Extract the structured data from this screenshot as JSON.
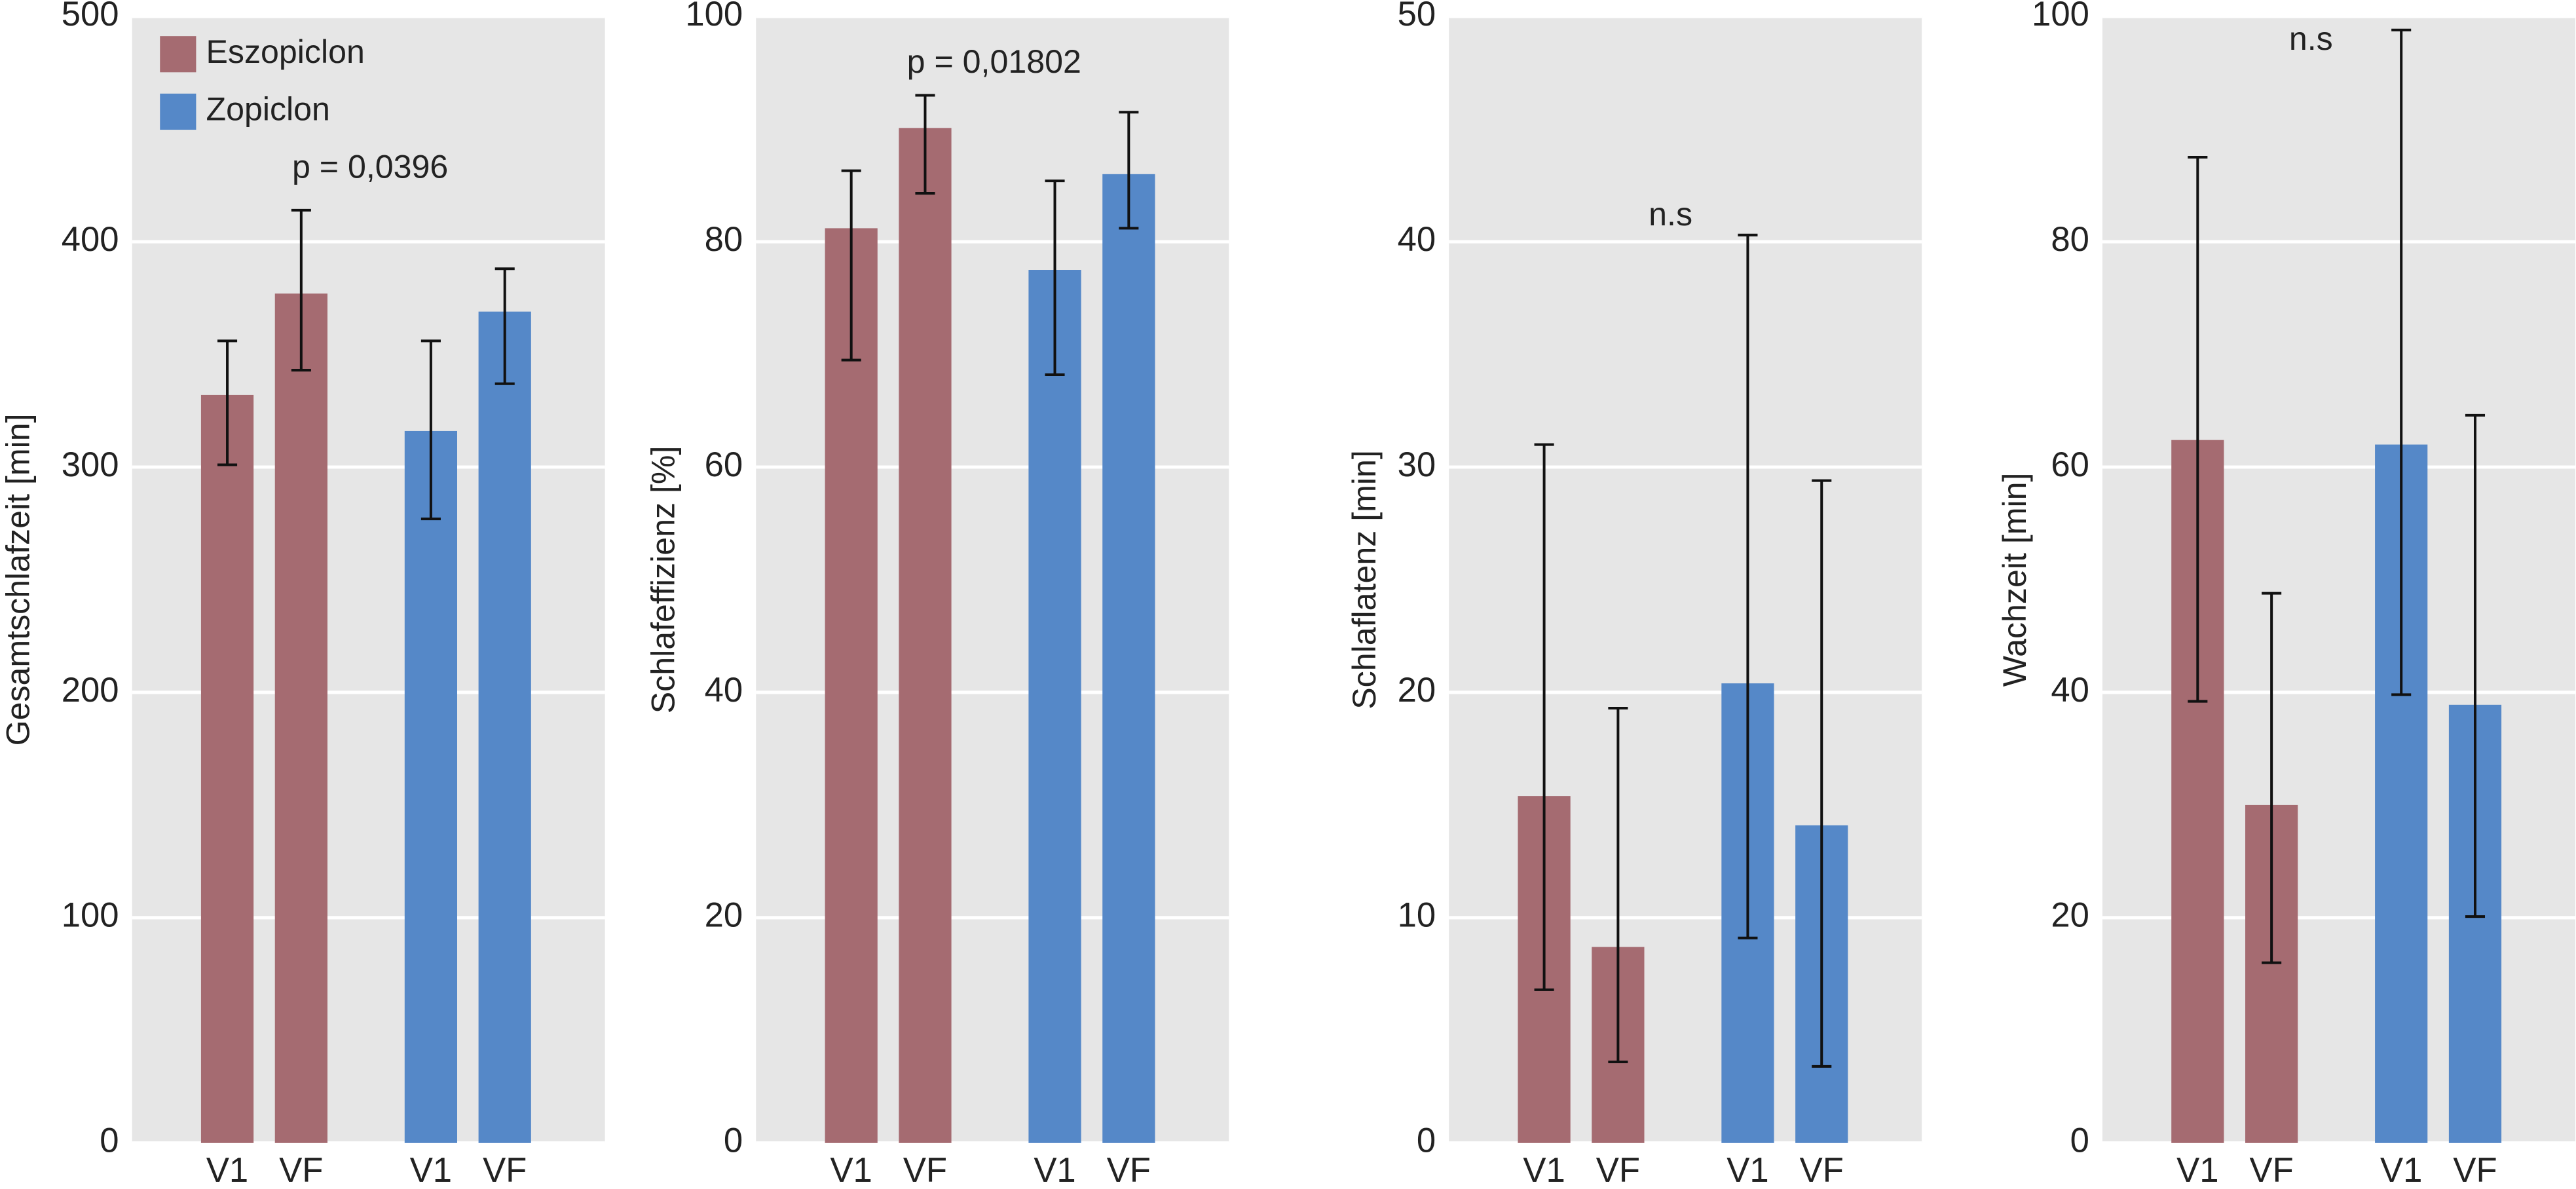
{
  "chart_data": [
    {
      "type": "bar",
      "ylabel": "Gesamtschlafzeit [min]",
      "categories": [
        "V1",
        "VF"
      ],
      "series": [
        {
          "name": "Eszopiclon",
          "color": "#a56b71",
          "values": [
            332,
            377
          ],
          "err_low": [
            301,
            343
          ],
          "err_high": [
            356,
            414
          ]
        },
        {
          "name": "Zopiclon",
          "color": "#5588c8",
          "values": [
            316,
            369
          ],
          "err_low": [
            277,
            337
          ],
          "err_high": [
            356,
            388
          ]
        }
      ],
      "ylim": [
        0,
        500
      ],
      "yticks": [
        0,
        100,
        200,
        300,
        400,
        500
      ],
      "grid": true,
      "legend": "upper left",
      "annotation": "p = 0,0396"
    },
    {
      "type": "bar",
      "ylabel": "Schlafeffizienz [%]",
      "categories": [
        "V1",
        "VF"
      ],
      "series": [
        {
          "color": "#a56b71",
          "values": [
            81.2,
            90.1
          ],
          "err_low": [
            69.5,
            84.3
          ],
          "err_high": [
            86.3,
            93.0
          ]
        },
        {
          "color": "#5588c8",
          "values": [
            77.5,
            86.0
          ],
          "err_low": [
            68.2,
            81.2
          ],
          "err_high": [
            85.4,
            91.5
          ]
        }
      ],
      "ylim": [
        0,
        100
      ],
      "yticks": [
        0,
        20,
        40,
        60,
        80,
        100
      ],
      "grid": true,
      "annotation": "p = 0,01802"
    },
    {
      "type": "bar",
      "ylabel": "Schlaflatenz [min]",
      "categories": [
        "V1",
        "VF"
      ],
      "series": [
        {
          "color": "#a56b71",
          "values": [
            15.4,
            8.7
          ],
          "err_low": [
            6.8,
            3.6
          ],
          "err_high": [
            31.0,
            19.3
          ]
        },
        {
          "color": "#5588c8",
          "values": [
            20.4,
            14.1
          ],
          "err_low": [
            9.1,
            3.4
          ],
          "err_high": [
            40.3,
            29.4
          ]
        }
      ],
      "ylim": [
        0,
        50
      ],
      "yticks": [
        0,
        10,
        20,
        30,
        40,
        50
      ],
      "grid": true,
      "annotation": "n.s"
    },
    {
      "type": "bar",
      "ylabel": "Wachzeit [min]",
      "categories": [
        "V1",
        "VF"
      ],
      "series": [
        {
          "color": "#a56b71",
          "values": [
            62.4,
            30.0
          ],
          "err_low": [
            39.2,
            16.0
          ],
          "err_high": [
            87.5,
            48.8
          ]
        },
        {
          "color": "#5588c8",
          "values": [
            62.0,
            38.9
          ],
          "err_low": [
            39.8,
            20.1
          ],
          "err_high": [
            98.8,
            64.6
          ]
        }
      ],
      "ylim": [
        0,
        100
      ],
      "yticks": [
        0,
        20,
        40,
        60,
        80,
        100
      ],
      "grid": true,
      "annotation": "n.s"
    }
  ]
}
